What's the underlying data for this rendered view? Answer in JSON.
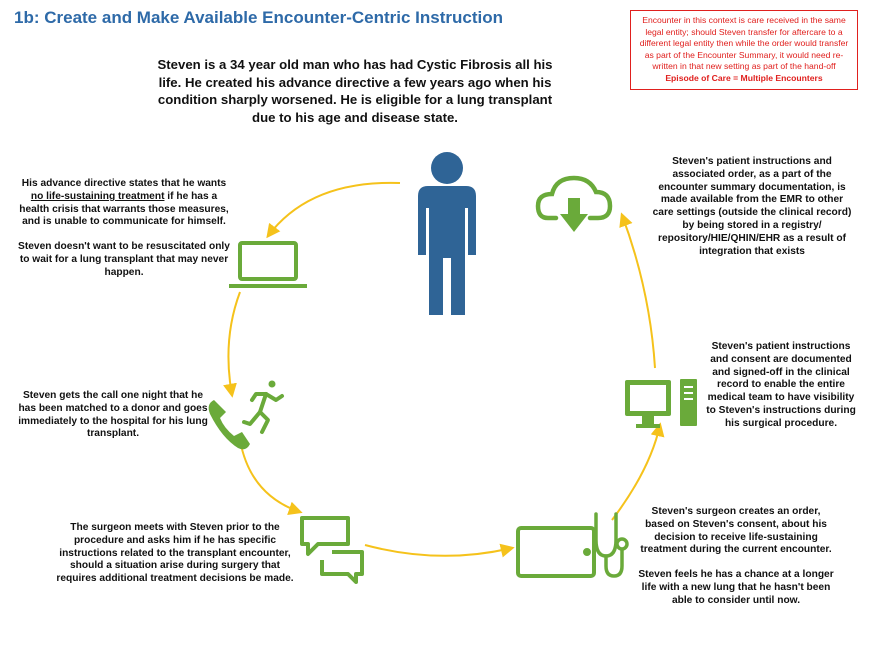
{
  "title": "1b:  Create and Make Available Encounter-Centric Instruction",
  "intro": "Steven is a 34 year old man who has had Cystic Fibrosis all his life.  He created his advance directive a few years ago when his condition sharply worsened.  He is eligible for a lung transplant due to his age and disease state.",
  "note": {
    "text": "Encounter in this context is care received in the same legal entity; should Steven transfer for aftercare to a different legal entity then while the order would transfer as part of the Encounter Summary, it would need re-written in that new setting as part of the hand-off",
    "emphasis": "Episode of Care = Multiple Encounters"
  },
  "steps": {
    "directive": {
      "p1_before": "His advance directive states that he wants ",
      "p1_underlined": "no life-sustaining treatment",
      "p1_after": " if he has a health crisis that warrants those measures, and is unable to communicate for himself.",
      "p2": "Steven doesn't want to be resuscitated only to wait for a lung transplant that may never happen."
    },
    "call": "Steven gets the call one night that he has been matched to a donor and goes immediately to the hospital for his lung transplant.",
    "surgeon_meets": "The surgeon meets with Steven prior to the procedure and asks him if he has specific instructions related to the transplant encounter, should a situation arise during surgery that requires additional treatment decisions be made.",
    "order": {
      "p1": "Steven's surgeon creates an order, based on Steven's consent, about his decision to receive life-sustaining treatment during the current encounter.",
      "p2": "Steven feels he has a chance at a longer life with a new lung that he hasn't been able to consider until now."
    },
    "documented": "Steven's patient instructions and consent are documented and signed-off in the clinical record to enable the entire medical team to have visibility to Steven's instructions during his surgical procedure.",
    "available": "Steven's patient instructions and associated order, as a part of the encounter summary documentation, is made available from the EMR to other care settings (outside the clinical record) by being stored in a registry/ repository/HIE/QHIN/EHR as a result of integration that exists"
  },
  "colors": {
    "title": "#2e6aa8",
    "person": "#2f6496",
    "icon_green": "#6aaa3a",
    "arrow_yellow": "#f5c21b",
    "note_red": "#e0201e"
  },
  "icons": [
    "person-icon",
    "laptop-icon",
    "phone-icon",
    "running-person-icon",
    "chat-bubbles-icon",
    "tablet-icon",
    "stethoscope-icon",
    "desktop-computer-icon",
    "cloud-download-icon"
  ]
}
